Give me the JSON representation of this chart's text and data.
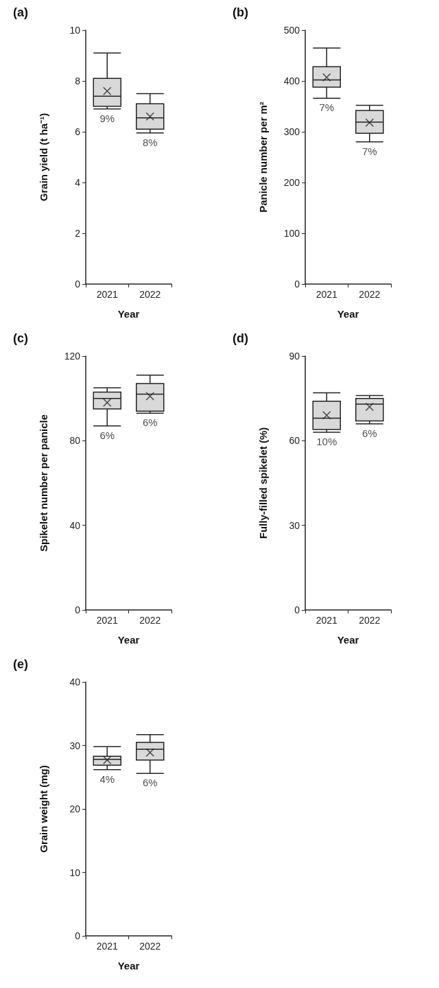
{
  "chart_data": [
    {
      "type": "box",
      "title": "(a)",
      "xlabel": "Year",
      "ylabel": "Grain yield (t ha⁻¹)",
      "categories": [
        "2021",
        "2022"
      ],
      "color": "#d9d9d9",
      "grid": false,
      "marker": "cross",
      "ylim": [
        0,
        10
      ],
      "yticks": [
        0,
        2,
        4,
        6,
        8,
        10
      ],
      "boxes": [
        {
          "low": 6.9,
          "q1": 7.0,
          "median": 7.4,
          "q3": 8.1,
          "high": 9.1,
          "mean": 7.6
        },
        {
          "low": 5.95,
          "q1": 6.1,
          "median": 6.55,
          "q3": 7.1,
          "high": 7.5,
          "mean": 6.6
        }
      ],
      "annotations": [
        {
          "text": "9%",
          "x": "2021",
          "y": 6.9
        },
        {
          "text": "8%",
          "x": "2022",
          "y": 5.95
        }
      ]
    },
    {
      "type": "box",
      "title": "(b)",
      "xlabel": "Year",
      "ylabel": "Panicle number per m²",
      "categories": [
        "2021",
        "2022"
      ],
      "color": "#d9d9d9",
      "grid": false,
      "marker": "cross",
      "ylim": [
        0,
        500
      ],
      "yticks": [
        0,
        100,
        200,
        300,
        400,
        500
      ],
      "boxes": [
        {
          "low": 366,
          "q1": 388,
          "median": 402,
          "q3": 428,
          "high": 465,
          "mean": 407
        },
        {
          "low": 280,
          "q1": 297,
          "median": 319,
          "q3": 342,
          "high": 352,
          "mean": 318
        }
      ],
      "annotations": [
        {
          "text": "7%",
          "x": "2021",
          "y": 366
        },
        {
          "text": "7%",
          "x": "2022",
          "y": 280
        }
      ]
    },
    {
      "type": "box",
      "title": "(c)",
      "xlabel": "Year",
      "ylabel": "Spikelet number per panicle",
      "categories": [
        "2021",
        "2022"
      ],
      "color": "#d9d9d9",
      "grid": false,
      "marker": "cross",
      "ylim": [
        0,
        120
      ],
      "yticks": [
        0,
        40,
        80,
        120
      ],
      "boxes": [
        {
          "low": 87,
          "q1": 95,
          "median": 100,
          "q3": 103,
          "high": 105,
          "mean": 98
        },
        {
          "low": 93,
          "q1": 94,
          "median": 102,
          "q3": 107,
          "high": 111,
          "mean": 101
        }
      ],
      "annotations": [
        {
          "text": "6%",
          "x": "2021",
          "y": 87
        },
        {
          "text": "6%",
          "x": "2022",
          "y": 93
        }
      ]
    },
    {
      "type": "box",
      "title": "(d)",
      "xlabel": "Year",
      "ylabel": "Fully-filled spikelet (%)",
      "categories": [
        "2021",
        "2022"
      ],
      "color": "#d9d9d9",
      "grid": false,
      "marker": "cross",
      "ylim": [
        0,
        90
      ],
      "yticks": [
        0,
        30,
        60,
        90
      ],
      "boxes": [
        {
          "low": 63,
          "q1": 64,
          "median": 68,
          "q3": 74,
          "high": 77,
          "mean": 69
        },
        {
          "low": 66,
          "q1": 67,
          "median": 73,
          "q3": 75,
          "high": 76,
          "mean": 72
        }
      ],
      "annotations": [
        {
          "text": "10%",
          "x": "2021",
          "y": 63
        },
        {
          "text": "6%",
          "x": "2022",
          "y": 66
        }
      ]
    },
    {
      "type": "box",
      "title": "(e)",
      "xlabel": "Year",
      "ylabel": "Grain weight (mg)",
      "categories": [
        "2021",
        "2022"
      ],
      "color": "#d9d9d9",
      "grid": false,
      "marker": "cross",
      "ylim": [
        0,
        40
      ],
      "yticks": [
        0,
        10,
        20,
        30,
        40
      ],
      "boxes": [
        {
          "low": 26.2,
          "q1": 26.9,
          "median": 27.8,
          "q3": 28.3,
          "high": 29.8,
          "mean": 27.7
        },
        {
          "low": 25.6,
          "q1": 27.7,
          "median": 29.4,
          "q3": 30.5,
          "high": 31.7,
          "mean": 28.9
        }
      ],
      "annotations": [
        {
          "text": "4%",
          "x": "2021",
          "y": 26.2
        },
        {
          "text": "6%",
          "x": "2022",
          "y": 25.6
        }
      ]
    }
  ]
}
